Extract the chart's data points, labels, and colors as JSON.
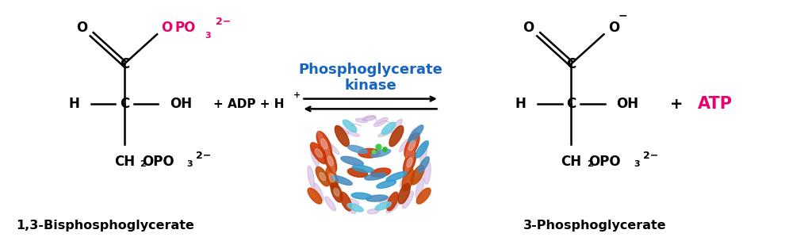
{
  "bg_color": "#ffffff",
  "magenta": "#E8006F",
  "blue": "#1565C0",
  "black": "#000000",
  "enzyme_label_line1": "Phosphoglycerate",
  "enzyme_label_line2": "kinase",
  "left_compound_name": "1,3-Bisphosphoglycerate",
  "right_compound_name": "3-Phosphoglycerate",
  "fig_width": 9.9,
  "fig_height": 3.09,
  "dpi": 100
}
